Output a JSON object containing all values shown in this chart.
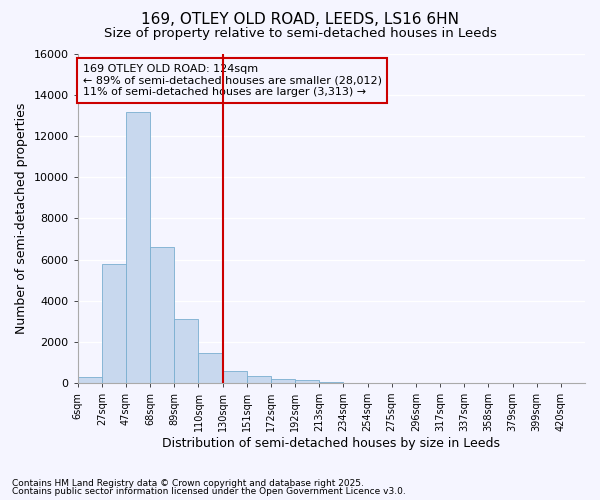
{
  "title_line1": "169, OTLEY OLD ROAD, LEEDS, LS16 6HN",
  "title_line2": "Size of property relative to semi-detached houses in Leeds",
  "xlabel": "Distribution of semi-detached houses by size in Leeds",
  "ylabel": "Number of semi-detached properties",
  "footnote1": "Contains HM Land Registry data © Crown copyright and database right 2025.",
  "footnote2": "Contains public sector information licensed under the Open Government Licence v3.0.",
  "annotation_title": "169 OTLEY OLD ROAD: 124sqm",
  "annotation_line2": "← 89% of semi-detached houses are smaller (28,012)",
  "annotation_line3": "11% of semi-detached houses are larger (3,313) →",
  "property_size_idx": 6,
  "bar_color": "#c8d8ee",
  "bar_edge_color": "#7aaed0",
  "vline_color": "#cc0000",
  "annotation_box_color": "#cc0000",
  "background_color": "#f5f5ff",
  "grid_color": "#ffffff",
  "categories": [
    "6sqm",
    "27sqm",
    "47sqm",
    "68sqm",
    "89sqm",
    "110sqm",
    "130sqm",
    "151sqm",
    "172sqm",
    "192sqm",
    "213sqm",
    "234sqm",
    "254sqm",
    "275sqm",
    "296sqm",
    "317sqm",
    "337sqm",
    "358sqm",
    "379sqm",
    "399sqm",
    "420sqm"
  ],
  "n_bins": 21,
  "values": [
    300,
    5800,
    13200,
    6600,
    3100,
    1450,
    600,
    350,
    200,
    130,
    60,
    20,
    10,
    5,
    3,
    2,
    1,
    1,
    0,
    0,
    0
  ],
  "ylim": [
    0,
    16000
  ],
  "yticks": [
    0,
    2000,
    4000,
    6000,
    8000,
    10000,
    12000,
    14000,
    16000
  ],
  "title_fontsize": 11,
  "subtitle_fontsize": 9.5,
  "axis_label_fontsize": 9,
  "tick_fontsize": 8,
  "annot_fontsize": 8
}
